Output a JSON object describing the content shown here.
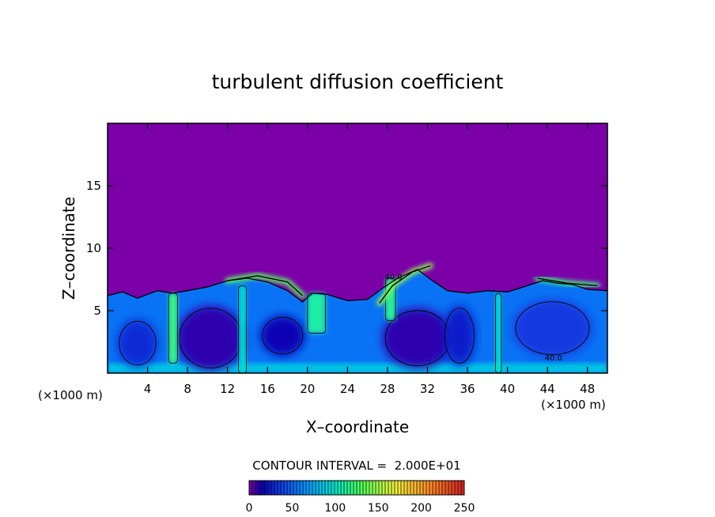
{
  "chart_data": {
    "type": "heatmap",
    "title": "turbulent diffusion coefficient",
    "xlabel": "X–coordinate",
    "ylabel": "Z–coordinate",
    "x_unit_left": "(×1000 m)",
    "x_unit_right": "(×1000 m)",
    "xlim": [
      0,
      50
    ],
    "ylim": [
      0,
      20
    ],
    "x_ticks": [
      4,
      8,
      12,
      16,
      20,
      24,
      28,
      32,
      36,
      40,
      44,
      48
    ],
    "y_ticks": [
      5,
      10,
      15
    ],
    "contour_label_values": [
      "40.0",
      "40.0"
    ],
    "contour_label_points": [
      [
        28.6,
        7.5
      ],
      [
        44.6,
        1.0
      ]
    ],
    "contour_interval_label": "CONTOUR INTERVAL =  2.000E+01",
    "colorbar": {
      "ticks": [
        0,
        50,
        100,
        150,
        200,
        250
      ],
      "range": [
        0,
        250
      ]
    },
    "background_value": 0,
    "boundary_layer_top": [
      [
        0,
        6.2
      ],
      [
        1.5,
        6.5
      ],
      [
        3,
        6.0
      ],
      [
        5,
        6.6
      ],
      [
        6.5,
        6.4
      ],
      [
        8,
        6.6
      ],
      [
        10,
        6.9
      ],
      [
        12,
        7.4
      ],
      [
        14,
        7.6
      ],
      [
        16,
        7.3
      ],
      [
        18,
        6.6
      ],
      [
        19.5,
        5.7
      ],
      [
        20.5,
        6.4
      ],
      [
        22,
        6.3
      ],
      [
        24,
        5.8
      ],
      [
        26,
        5.9
      ],
      [
        27.5,
        6.8
      ],
      [
        29,
        7.6
      ],
      [
        31,
        8.3
      ],
      [
        32.5,
        7.4
      ],
      [
        34,
        6.6
      ],
      [
        36,
        6.4
      ],
      [
        38,
        6.6
      ],
      [
        40,
        6.5
      ],
      [
        42,
        7.0
      ],
      [
        43.5,
        7.4
      ],
      [
        45,
        7.2
      ],
      [
        46.5,
        7.1
      ],
      [
        48,
        6.7
      ],
      [
        50,
        6.6
      ]
    ],
    "cells": [
      {
        "cx": 10.3,
        "cz": 2.8,
        "rx": 3.4,
        "rz": 2.6,
        "value": 10
      },
      {
        "cx": 17.5,
        "cz": 3.0,
        "rx": 2.2,
        "rz": 1.6,
        "value": 15
      },
      {
        "cx": 31.0,
        "cz": 2.8,
        "rx": 3.5,
        "rz": 2.4,
        "value": 10
      },
      {
        "cx": 35.2,
        "cz": 3.0,
        "rx": 1.6,
        "rz": 2.4,
        "value": 25
      },
      {
        "cx": 3.0,
        "cz": 2.4,
        "rx": 2.0,
        "rz": 1.9,
        "value": 30
      },
      {
        "cx": 44.5,
        "cz": 3.6,
        "rx": 4.0,
        "rz": 2.3,
        "value": 35
      }
    ],
    "plumes": [
      {
        "x0": 6.1,
        "x1": 7.0,
        "z0": 0.8,
        "z1": 6.4,
        "value": 120
      },
      {
        "x0": 13.1,
        "x1": 13.9,
        "z0": 0.0,
        "z1": 7.0,
        "value": 95
      },
      {
        "x0": 20.0,
        "x1": 21.8,
        "z0": 3.2,
        "z1": 6.4,
        "value": 110
      },
      {
        "x0": 27.8,
        "x1": 28.8,
        "z0": 4.2,
        "z1": 7.6,
        "value": 115
      },
      {
        "x0": 38.8,
        "x1": 39.4,
        "z0": 0.0,
        "z1": 6.4,
        "value": 100
      }
    ],
    "shear_layers": [
      {
        "points": [
          [
            12,
            7.4
          ],
          [
            15,
            7.8
          ],
          [
            18,
            7.3
          ],
          [
            19.5,
            6.2
          ]
        ],
        "value": 130
      },
      {
        "points": [
          [
            27.2,
            5.6
          ],
          [
            28.5,
            7.0
          ],
          [
            30.5,
            8.1
          ],
          [
            32.3,
            8.6
          ]
        ],
        "value": 145
      },
      {
        "points": [
          [
            43,
            7.6
          ],
          [
            46,
            7.2
          ],
          [
            49,
            7.0
          ]
        ],
        "value": 120
      }
    ]
  }
}
